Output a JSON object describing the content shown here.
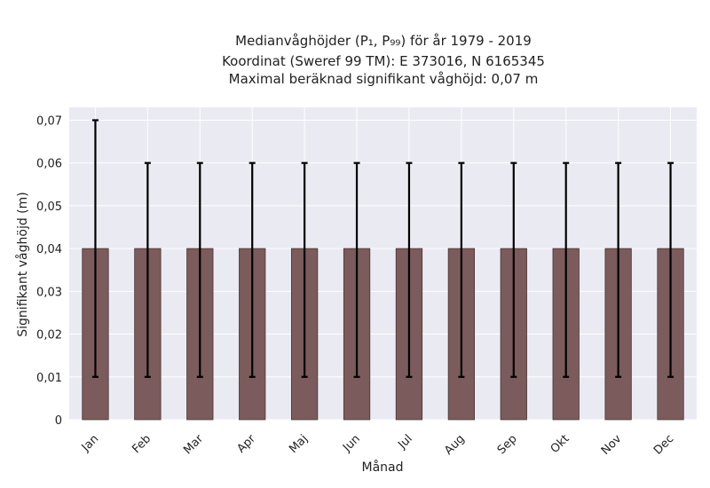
{
  "chart_data": {
    "type": "bar",
    "title_lines": [
      "Medianvåghöjder (P₁, P₉₉) för år 1979 - 2019",
      "Koordinat (Sweref 99 TM): E 373016, N 6165345",
      "Maximal beräknad signifikant våghöjd: 0,07 m"
    ],
    "xlabel": "Månad",
    "ylabel": "Signifikant våghöjd (m)",
    "categories": [
      "Jan",
      "Feb",
      "Mar",
      "Apr",
      "Maj",
      "Jun",
      "Jul",
      "Aug",
      "Sep",
      "Okt",
      "Nov",
      "Dec"
    ],
    "series": [
      {
        "values": [
          0.04,
          0.04,
          0.04,
          0.04,
          0.04,
          0.04,
          0.04,
          0.04,
          0.04,
          0.04,
          0.04,
          0.04
        ],
        "p1": [
          0.01,
          0.01,
          0.01,
          0.01,
          0.01,
          0.01,
          0.01,
          0.01,
          0.01,
          0.01,
          0.01,
          0.01
        ],
        "p99": [
          0.07,
          0.06,
          0.06,
          0.06,
          0.06,
          0.06,
          0.06,
          0.06,
          0.06,
          0.06,
          0.06,
          0.06
        ]
      }
    ],
    "ylim": [
      0,
      0.073
    ],
    "yticks": [
      0,
      0.01,
      0.02,
      0.03,
      0.04,
      0.05,
      0.06,
      0.07
    ],
    "ytick_labels": [
      "0",
      "0,01",
      "0,02",
      "0,03",
      "0,04",
      "0,05",
      "0,06",
      "0,07"
    ],
    "grid": true,
    "colors": {
      "bar": "#7b5b5b",
      "bar_edge": "#4a3535",
      "plot_background": "#eaeaf2",
      "grid": "#ffffff",
      "error_bar": "#000000"
    }
  }
}
